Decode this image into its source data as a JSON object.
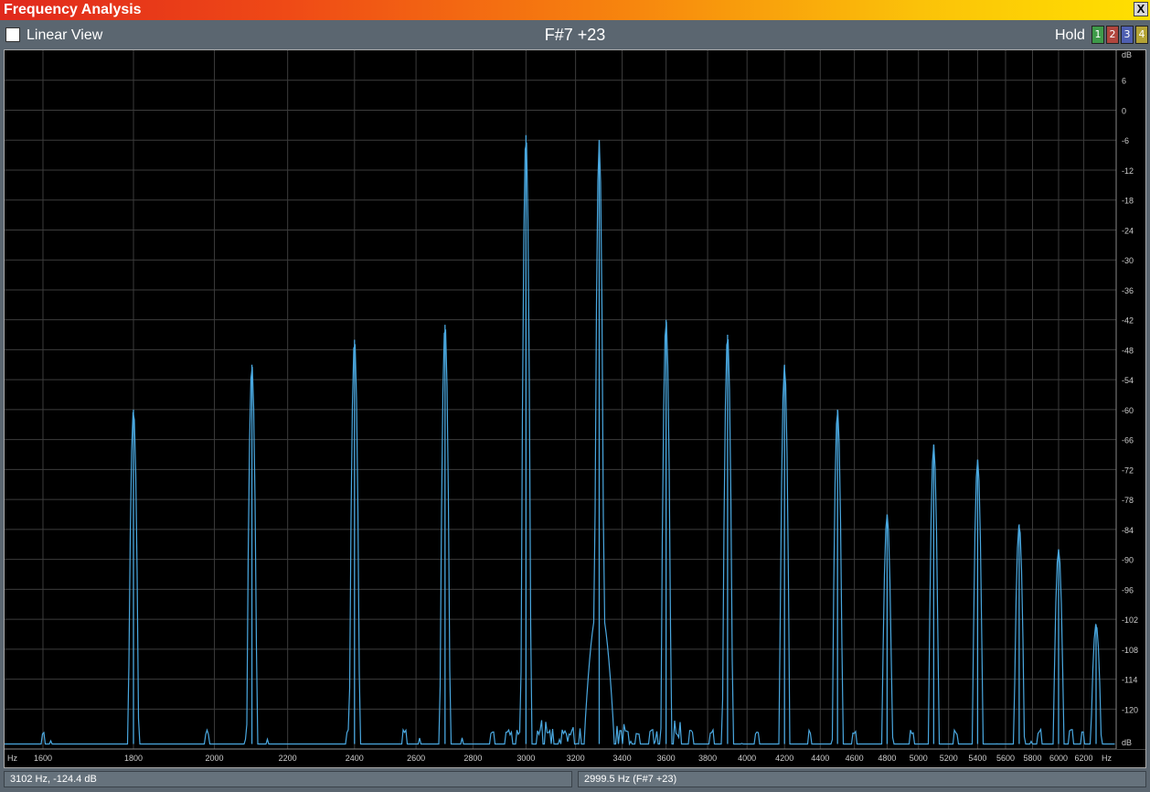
{
  "window": {
    "title": "Frequency Analysis",
    "close_label": "X"
  },
  "toolbar": {
    "linear_view_label": "Linear View",
    "note_display": "F#7 +23",
    "hold_label": "Hold",
    "hold_buttons": [
      {
        "label": "1",
        "color": "#3e9a49"
      },
      {
        "label": "2",
        "color": "#b0463e"
      },
      {
        "label": "3",
        "color": "#4e5fb1"
      },
      {
        "label": "4",
        "color": "#b4a436"
      }
    ]
  },
  "status": {
    "cursor_readout": "3102 Hz, -124.4 dB",
    "peak_readout": "2999.5 Hz (F#7 +23)"
  },
  "chart_data": {
    "type": "line",
    "title": "",
    "xlabel": "Hz",
    "ylabel": "dB",
    "x_ticks": [
      1600,
      1800,
      2000,
      2200,
      2400,
      2600,
      2800,
      3000,
      3200,
      3400,
      3600,
      3800,
      4000,
      4200,
      4400,
      4600,
      4800,
      5000,
      5200,
      5400,
      5600,
      5800,
      6000,
      6200
    ],
    "y_ticks": [
      6,
      0,
      -6,
      -12,
      -18,
      -24,
      -30,
      -36,
      -42,
      -48,
      -54,
      -60,
      -66,
      -72,
      -78,
      -84,
      -90,
      -96,
      -102,
      -108,
      -114,
      -120
    ],
    "ylim": [
      -128,
      12
    ],
    "xscale": "log",
    "grid": true,
    "line_color": "#4aa8e0",
    "series": [
      {
        "peaks": [
          {
            "x": 1800,
            "y": -60
          },
          {
            "x": 2100,
            "y": -51
          },
          {
            "x": 2400,
            "y": -46
          },
          {
            "x": 2700,
            "y": -43
          },
          {
            "x": 3000,
            "y": -5
          },
          {
            "x": 3300,
            "y": -6
          },
          {
            "x": 3600,
            "y": -42
          },
          {
            "x": 3900,
            "y": -45
          },
          {
            "x": 4200,
            "y": -51
          },
          {
            "x": 4500,
            "y": -60
          },
          {
            "x": 4800,
            "y": -81
          },
          {
            "x": 5100,
            "y": -67
          },
          {
            "x": 5400,
            "y": -70
          },
          {
            "x": 5700,
            "y": -83
          },
          {
            "x": 6000,
            "y": -88
          },
          {
            "x": 6300,
            "y": -103
          }
        ]
      }
    ]
  }
}
